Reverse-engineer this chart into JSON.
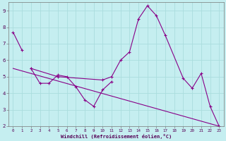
{
  "xlabel": "Windchill (Refroidissement éolien,°C)",
  "xlim": [
    -0.5,
    23.5
  ],
  "ylim": [
    2,
    9.5
  ],
  "xticks": [
    0,
    1,
    2,
    3,
    4,
    5,
    6,
    7,
    8,
    9,
    10,
    11,
    12,
    13,
    14,
    15,
    16,
    17,
    18,
    19,
    20,
    21,
    22,
    23
  ],
  "yticks": [
    2,
    3,
    4,
    5,
    6,
    7,
    8,
    9
  ],
  "bg_color": "#c5eef0",
  "line_color": "#880088",
  "grid_color": "#aadddd",
  "tick_color": "#550055",
  "line1_x": [
    0,
    1
  ],
  "line1_y": [
    7.7,
    6.6
  ],
  "line2_x": [
    2,
    3,
    4,
    5,
    6,
    7,
    8,
    9,
    10,
    11
  ],
  "line2_y": [
    5.5,
    4.6,
    4.6,
    5.1,
    5.0,
    4.4,
    3.6,
    3.2,
    4.2,
    4.7
  ],
  "line3_x": [
    2,
    5,
    10,
    11,
    12,
    13,
    14,
    15,
    16,
    17,
    19,
    20,
    21,
    22,
    23
  ],
  "line3_y": [
    5.5,
    5.0,
    4.8,
    5.0,
    6.0,
    6.5,
    8.5,
    9.3,
    8.7,
    7.5,
    4.9,
    4.3,
    5.2,
    3.2,
    2.0
  ],
  "line4_x": [
    0,
    23
  ],
  "line4_y": [
    5.5,
    2.0
  ]
}
